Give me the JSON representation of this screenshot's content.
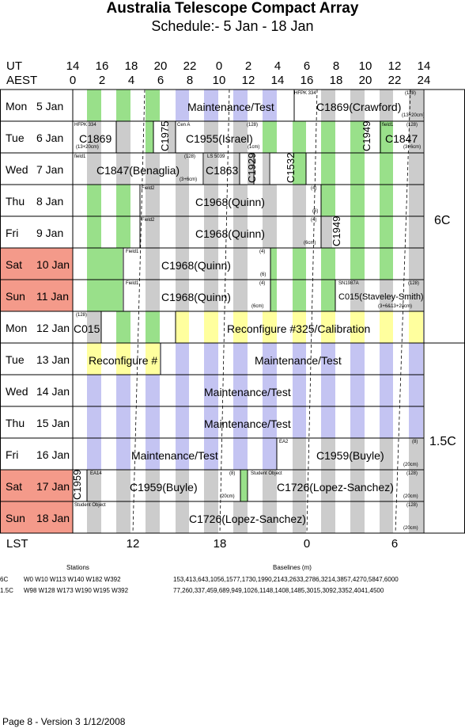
{
  "header": {
    "title": "Australia Telescope Compact Array",
    "subtitle": "Schedule:- 5  Jan - 18 Jan"
  },
  "axis": {
    "ut_label": "UT",
    "aest_label": "AEST",
    "lst_label": "LST",
    "ut_ticks": [
      "14",
      "16",
      "18",
      "20",
      "22",
      "0",
      "2",
      "4",
      "6",
      "8",
      "10",
      "12",
      "14"
    ],
    "aest_ticks": [
      "0",
      "2",
      "4",
      "6",
      "8",
      "10",
      "12",
      "14",
      "16",
      "18",
      "20",
      "22",
      "24"
    ],
    "lst_ticks": [
      "12",
      "18",
      "0",
      "6"
    ]
  },
  "days": [
    {
      "day": "Mon",
      "date": "5 Jan",
      "weekend": false
    },
    {
      "day": "Tue",
      "date": "6 Jan",
      "weekend": false
    },
    {
      "day": "Wed",
      "date": "7 Jan",
      "weekend": false
    },
    {
      "day": "Thu",
      "date": "8 Jan",
      "weekend": false
    },
    {
      "day": "Fri",
      "date": "9 Jan",
      "weekend": false
    },
    {
      "day": "Sat",
      "date": "10 Jan",
      "weekend": true
    },
    {
      "day": "Sun",
      "date": "11 Jan",
      "weekend": true
    },
    {
      "day": "Mon",
      "date": "12 Jan",
      "weekend": false
    },
    {
      "day": "Tue",
      "date": "13 Jan",
      "weekend": false
    },
    {
      "day": "Wed",
      "date": "14 Jan",
      "weekend": false
    },
    {
      "day": "Thu",
      "date": "15 Jan",
      "weekend": false
    },
    {
      "day": "Fri",
      "date": "16 Jan",
      "weekend": false
    },
    {
      "day": "Sat",
      "date": "17 Jan",
      "weekend": true
    },
    {
      "day": "Sun",
      "date": "18 Jan",
      "weekend": true
    }
  ],
  "blocks": {
    "r0a": "Maintenance/Test",
    "r0b": "C1869(Crawford)",
    "r0b_tag": "HFPK 334",
    "r0b_band": "(13+20cm)",
    "r0b_num": "(128)",
    "r1a": "C1869",
    "r1a_tag": "HFPK 334",
    "r1a_band": "(13+20cm)",
    "r1b": "C1975",
    "r1c": "C1955(Israel)",
    "r1c_tag": "Cen A",
    "r1c_num": "(128)",
    "r1c_band": "(1cm)",
    "r1d": "C1949",
    "r1e": "C1847",
    "r1e_tag": "field1",
    "r1e_num": "(128)",
    "r1e_band": "(3+6cm)",
    "r2a": "C1847(Benaglia)",
    "r2a_tag": "field1",
    "r2a_num": "(128)",
    "r2a_band": "(3+6cm)",
    "r2b": "C1863",
    "r2b_tag": "LS 5039",
    "r2c": "C1929",
    "r2d": "C1532",
    "r3a": "C1968(Quinn)",
    "r3a_tag": "Field2",
    "r3a_num": "(4)",
    "r3a_band": "(6)",
    "r4a": "C1968(Quinn)",
    "r4a_tag": "Field2",
    "r4a_num": "(4)",
    "r4a_band": "(6cm)",
    "r4b": "C1949",
    "r5a": "C1968(Quinn)",
    "r5a_tag": "Field1",
    "r5a_num": "(4)",
    "r5a_band": "(6)",
    "r6a": "C1968(Quinn)",
    "r6a_tag": "Field1",
    "r6a_num": "(4)",
    "r6a_band": "(6cm)",
    "r6b": "C015(Staveley-Smith)",
    "r6b_tag": "SN1987A",
    "r6b_num": "(128)",
    "r6b_band": "(3+6&13+20cm)",
    "r7a": "C015",
    "r7a_num": "(128)",
    "r7b": "Reconfigure #325/Calibration",
    "r8a": "Reconfigure #",
    "r8b": "Maintenance/Test",
    "r9a": "Maintenance/Test",
    "r10a": "Maintenance/Test",
    "r11a": "Maintenance/Test",
    "r11b": "C1959(Buyle)",
    "r11b_tag": "EA2",
    "r11b_num": "(8)",
    "r11b_band": "(20cm)",
    "r12a": "C1959",
    "r12b": "C1959(Buyle)",
    "r12b_tag": "EA14",
    "r12b_num": "(8)",
    "r12b_band": "(20cm)",
    "r12c": "C1726(Lopez-Sanchez)",
    "r12c_tag": "Student Object",
    "r12c_num": "(128)",
    "r12c_band": "(20cm)",
    "r13a": "C1726(Lopez-Sanchez)",
    "r13a_tag": "Student Object",
    "r13a_num": "(128)",
    "r13a_band": "(20cm)"
  },
  "configs": {
    "top": "6C",
    "bottom": "1.5C"
  },
  "stations": {
    "col1": "Stations",
    "col2": "Baselines (m)",
    "rows": [
      {
        "cfg": "6C",
        "stations": "W0 W10 W113 W140 W182 W392",
        "baselines": "153,413,643,1056,1577,1730,1990,2143,2633,2786,3214,3857,4270,5847,6000"
      },
      {
        "cfg": "1.5C",
        "stations": "W98 W128 W173 W190 W195 W392",
        "baselines": "77,260,337,459,689,949,1026,1148,1408,1485,3015,3092,3352,4041,4500"
      }
    ]
  },
  "footer": "Page 8 - Version 3  1/12/2008",
  "colors": {
    "green": "#99e08a",
    "grey": "#cccccc",
    "blue": "#c4c4f2",
    "yellow": "#ffff9e",
    "weekend": "#f49a8a"
  }
}
